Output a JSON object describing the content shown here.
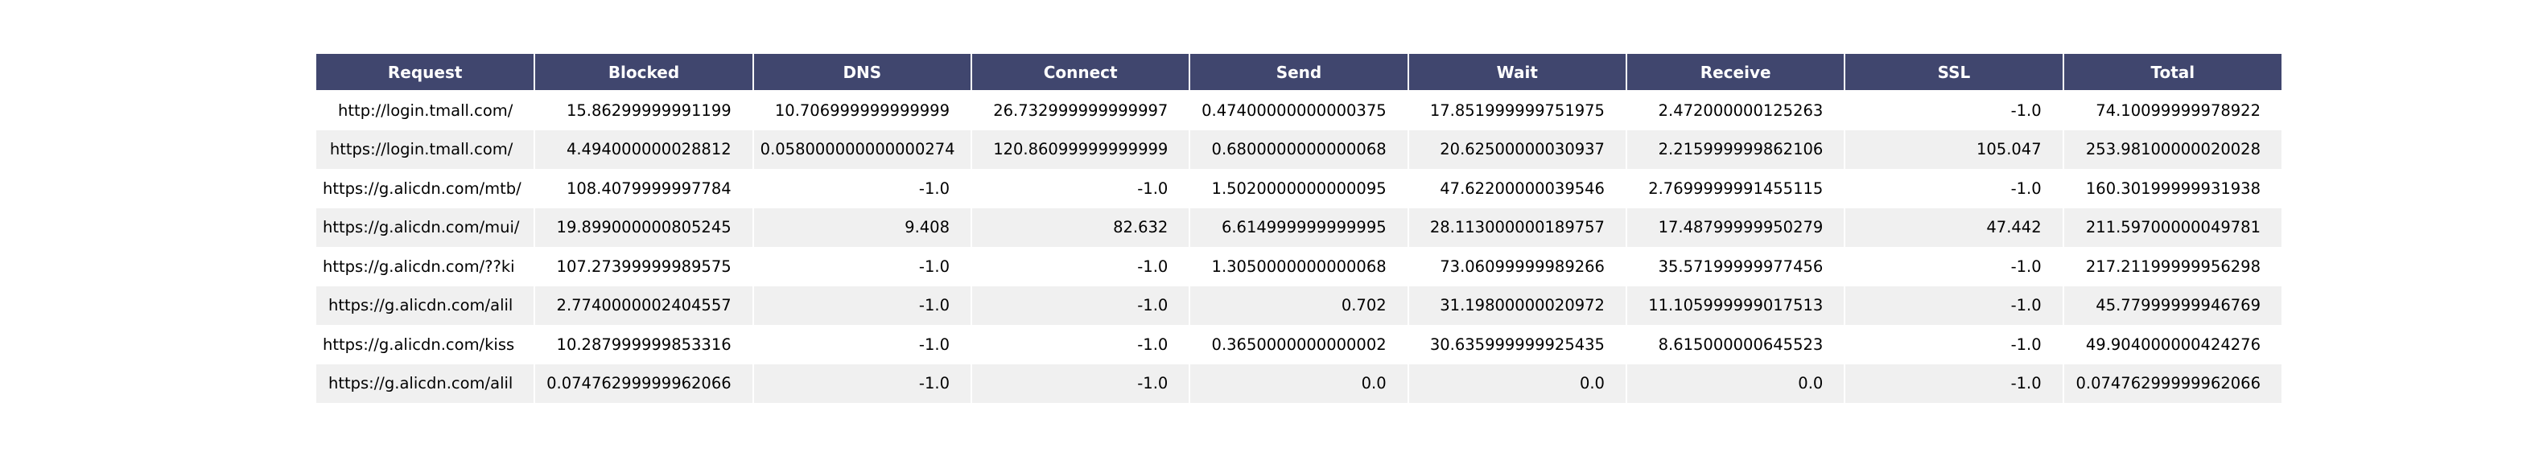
{
  "chart_data": {
    "type": "table",
    "colors": {
      "header_bg": "#40466e",
      "header_text": "#ffffff",
      "row_alt_bg": "#f0f0f0",
      "row_bg": "#ffffff"
    },
    "columns": [
      "Request",
      "Blocked",
      "DNS",
      "Connect",
      "Send",
      "Wait",
      "Receive",
      "SSL",
      "Total"
    ],
    "rows": [
      [
        "http://login.tmall.com/",
        "15.86299999991199",
        "10.706999999999999",
        "26.732999999999997",
        "0.47400000000000375",
        "17.851999999751975",
        "2.472000000125263",
        "-1.0",
        "74.10099999978922"
      ],
      [
        "https://login.tmall.com/",
        "4.494000000028812",
        "0.058000000000000274",
        "120.86099999999999",
        "0.6800000000000068",
        "20.62500000030937",
        "2.215999999862106",
        "105.047",
        "253.98100000020028"
      ],
      [
        "https://g.alicdn.com/mtb/",
        "108.4079999997784",
        "-1.0",
        "-1.0",
        "1.5020000000000095",
        "47.62200000039546",
        "2.7699999991455115",
        "-1.0",
        "160.30199999931938"
      ],
      [
        "https://g.alicdn.com/mui/",
        "19.899000000805245",
        "9.408",
        "82.632",
        "6.614999999999995",
        "28.113000000189757",
        "17.48799999950279",
        "47.442",
        "211.59700000049781"
      ],
      [
        "https://g.alicdn.com/??ki",
        "107.27399999989575",
        "-1.0",
        "-1.0",
        "1.3050000000000068",
        "73.06099999989266",
        "35.57199999977456",
        "-1.0",
        "217.21199999956298"
      ],
      [
        "https://g.alicdn.com/alil",
        "2.7740000002404557",
        "-1.0",
        "-1.0",
        "0.702",
        "31.19800000020972",
        "11.105999999017513",
        "-1.0",
        "45.77999999946769"
      ],
      [
        "https://g.alicdn.com/kiss",
        "10.287999999853316",
        "-1.0",
        "-1.0",
        "0.3650000000000002",
        "30.635999999925435",
        "8.615000000645523",
        "-1.0",
        "49.904000000424276"
      ],
      [
        "https://g.alicdn.com/alil",
        "0.07476299999962066",
        "-1.0",
        "-1.0",
        "0.0",
        "0.0",
        "0.0",
        "-1.0",
        "0.07476299999962066"
      ]
    ]
  }
}
